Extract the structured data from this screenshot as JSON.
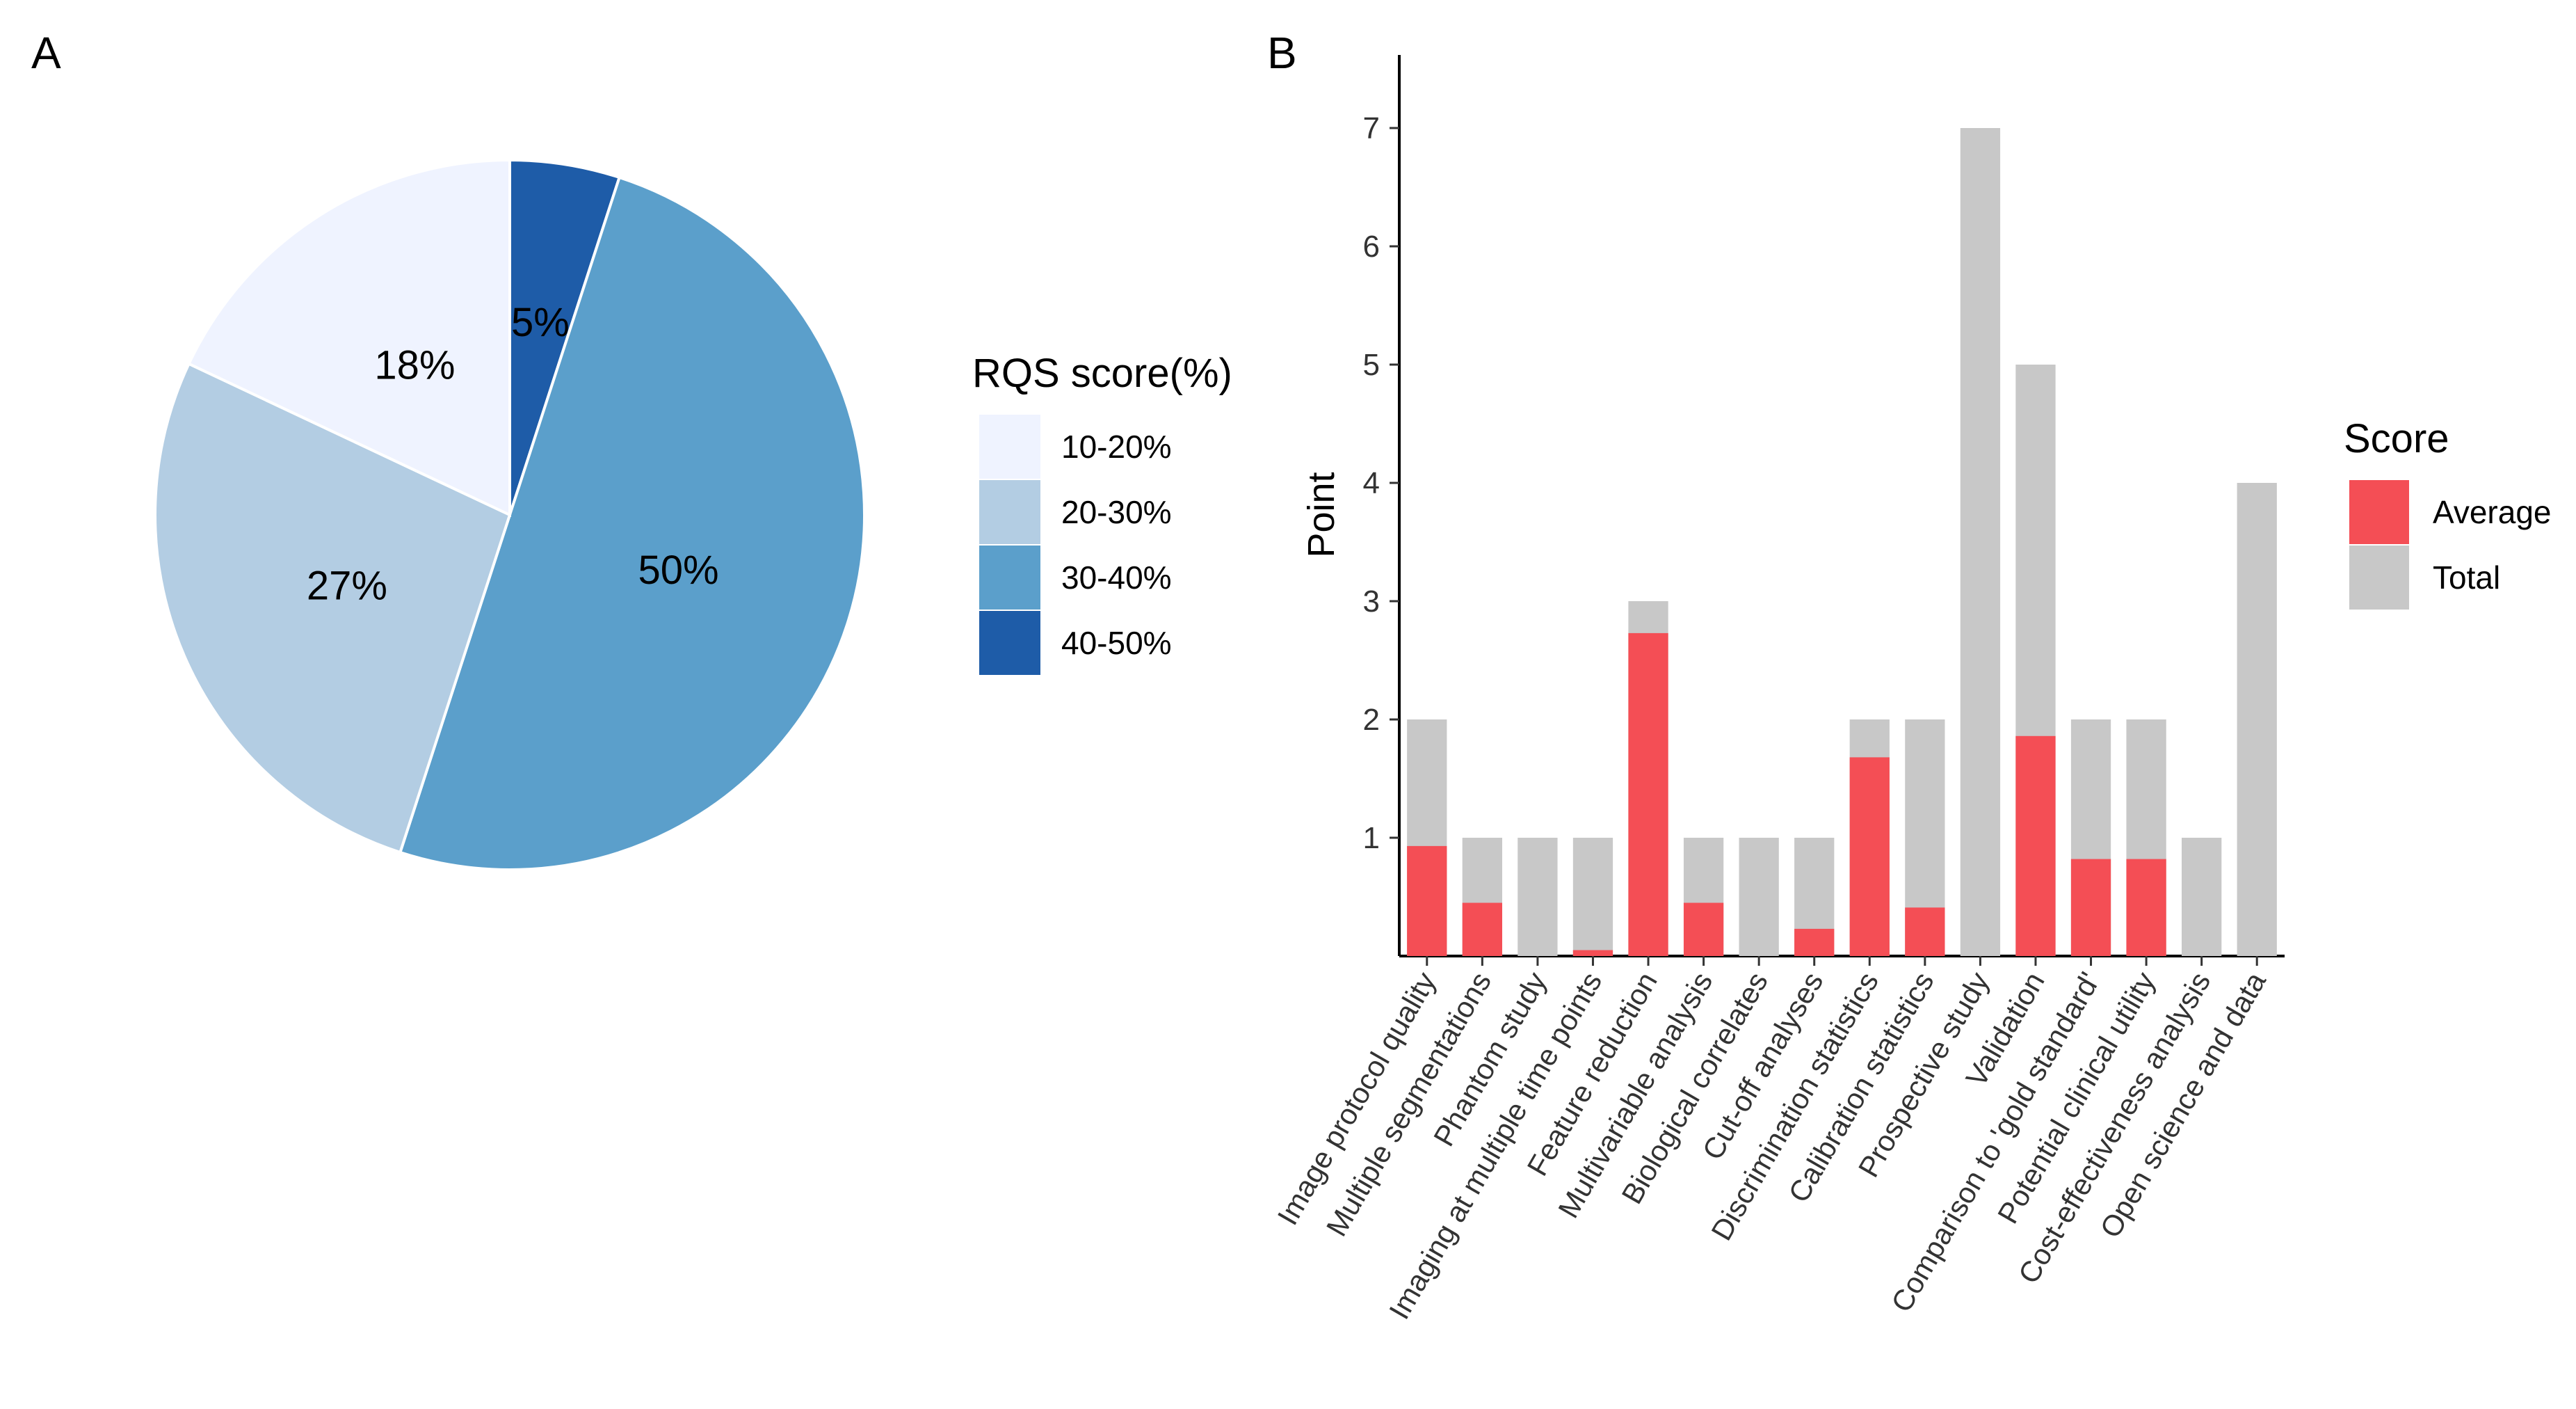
{
  "panel_a": {
    "letter": "A"
  },
  "panel_b": {
    "letter": "B"
  },
  "chart_data": [
    {
      "type": "pie",
      "title": "",
      "categories": [
        "10-20%",
        "20-30%",
        "30-40%",
        "40-50%"
      ],
      "values": [
        18,
        27,
        50,
        5
      ],
      "labels": [
        "18%",
        "27%",
        "50%",
        "5%"
      ],
      "colors": [
        "#EFF3FF",
        "#B3CDE3",
        "#5B9FCB",
        "#1E5CA8"
      ],
      "legend_title": "RQS score(%)",
      "legend_position": "right"
    },
    {
      "type": "bar",
      "stacked": "overlay",
      "ylabel": "Point",
      "xlabel": "",
      "ylim": [
        0,
        7.5
      ],
      "yticks": [
        "1",
        "2",
        "3",
        "4",
        "5",
        "6",
        "7"
      ],
      "legend_title": "Score",
      "legend_position": "right",
      "categories": [
        "Image protocol quality",
        "Multiple segmentations",
        "Phantom study",
        "Imaging at multiple time points",
        "Feature reduction",
        "Multivariable analysis",
        "Biological correlates",
        "Cut-off analyses",
        "Discrimination statistics",
        "Calibration statistics",
        "Prospective study",
        "Validation",
        "Comparison to 'gold standard'",
        "Potential clinical utility",
        "Cost-effectiveness analysis",
        "Open science and data"
      ],
      "series": [
        {
          "name": "Total",
          "color": "#C8C8C8",
          "values": [
            2,
            1,
            1,
            1,
            3,
            1,
            1,
            1,
            2,
            2,
            7,
            5,
            2,
            2,
            1,
            4
          ]
        },
        {
          "name": "Average",
          "color": "#F44E55",
          "values": [
            0.93,
            0.45,
            0,
            0.05,
            2.73,
            0.45,
            0,
            0.23,
            1.68,
            0.41,
            0,
            1.86,
            0.82,
            0.82,
            0,
            0
          ]
        }
      ],
      "legend_entries": [
        "Average",
        "Total"
      ]
    }
  ]
}
